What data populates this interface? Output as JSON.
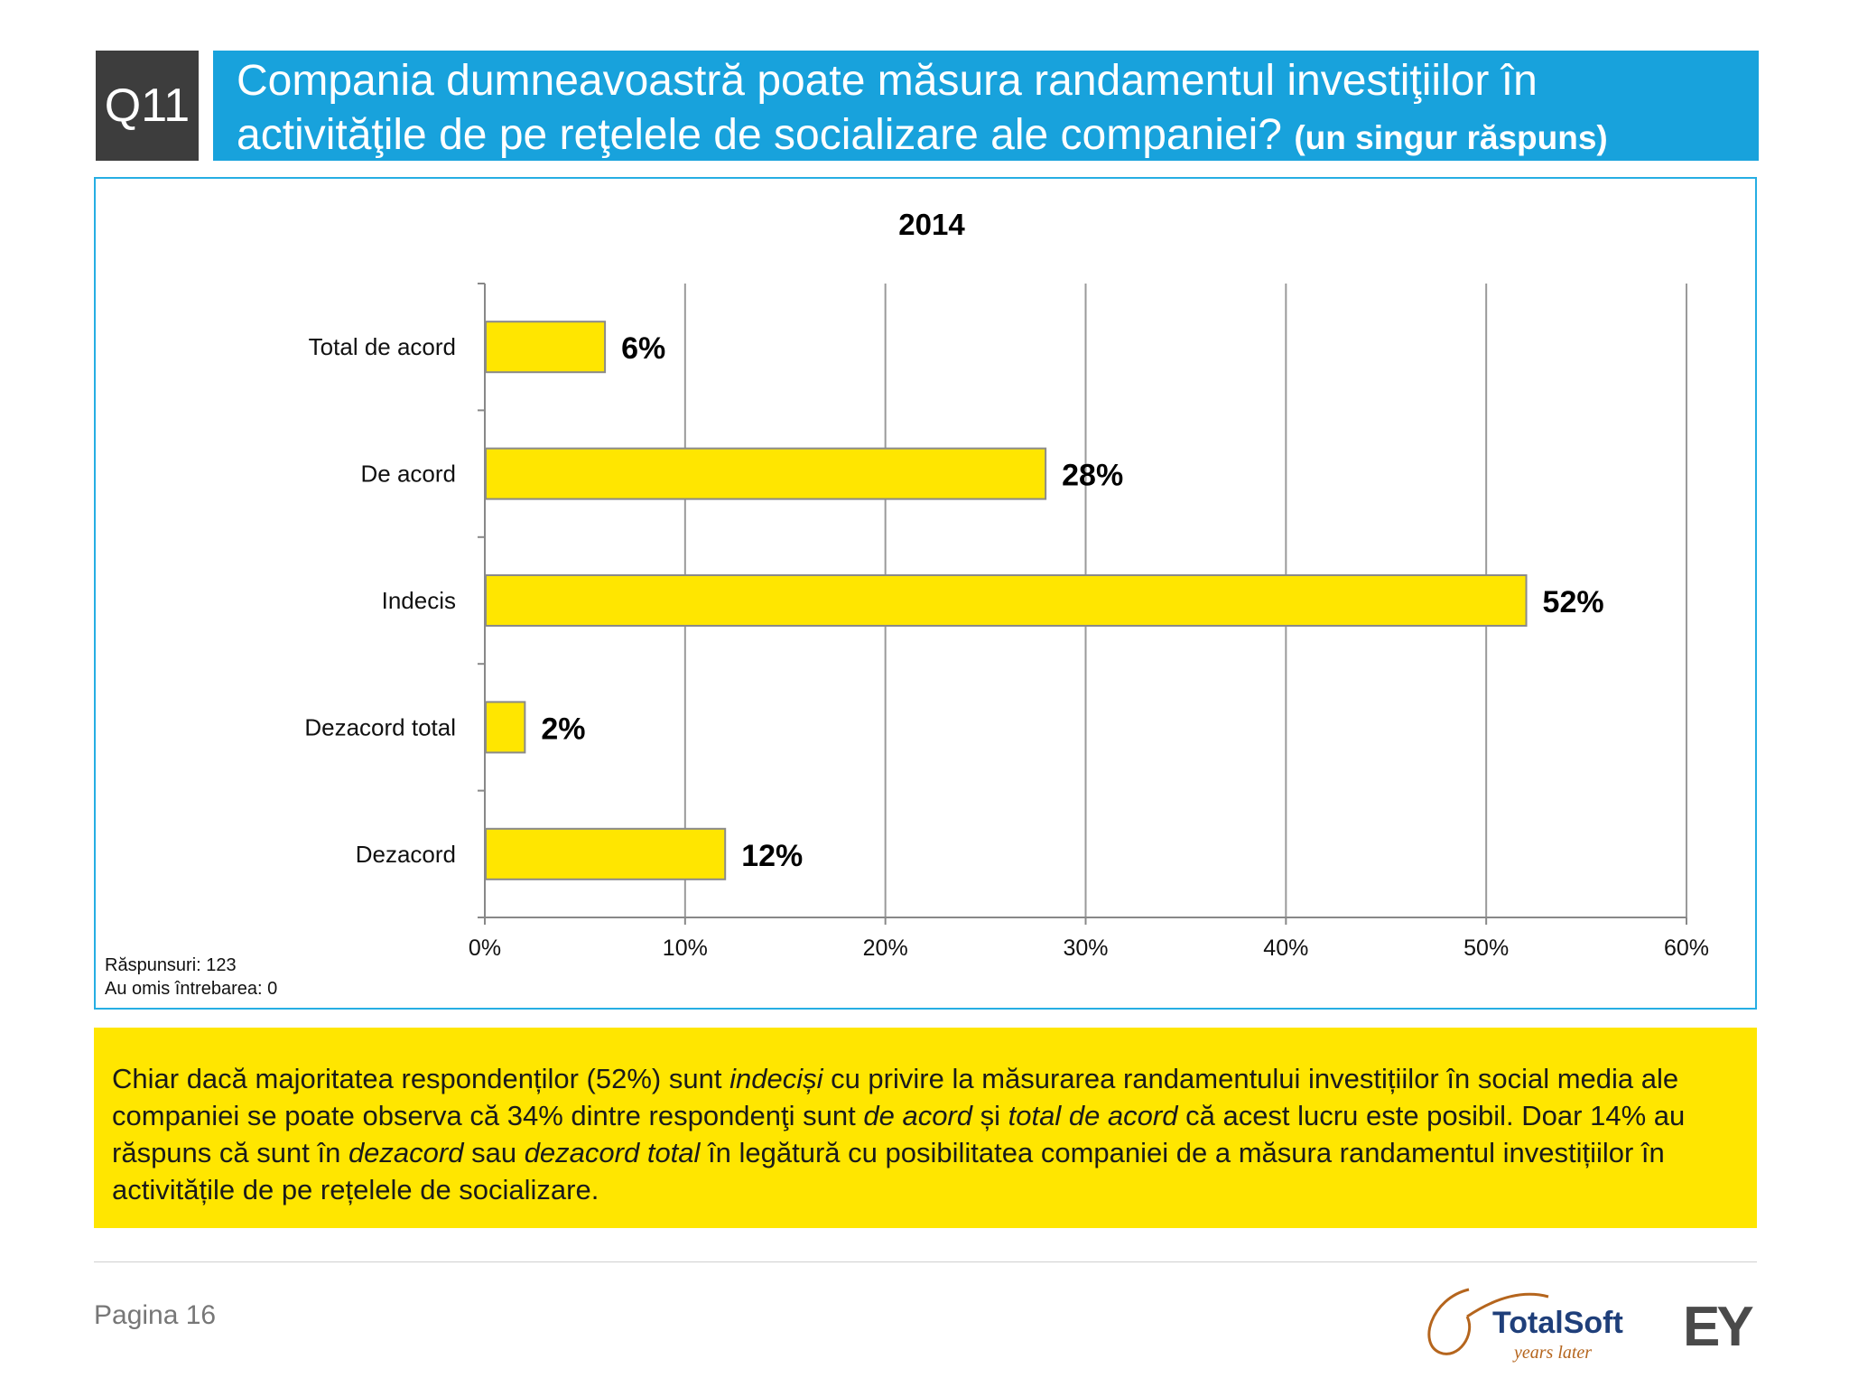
{
  "header": {
    "badge": "Q11",
    "title_line1": "Compania dumneavoastră poate măsura randamentul investiţiilor în",
    "title_line2": "activităţile de pe reţelele de socializare ale companiei?",
    "title_note": "(un singur răspuns)"
  },
  "chart_data": {
    "type": "bar",
    "orientation": "horizontal",
    "title": "2014",
    "categories": [
      "Total de acord",
      "De acord",
      "Indecis",
      "Dezacord total",
      "Dezacord"
    ],
    "values": [
      6,
      28,
      52,
      2,
      12
    ],
    "value_labels": [
      "6%",
      "28%",
      "52%",
      "2%",
      "12%"
    ],
    "xlim": [
      0,
      60
    ],
    "x_ticks": [
      "0%",
      "10%",
      "20%",
      "30%",
      "40%",
      "50%",
      "60%"
    ],
    "grid": true,
    "bar_color": "#ffe600"
  },
  "footnotes": {
    "responses": "Răspunsuri: 123",
    "skipped": "Au omis întrebarea: 0"
  },
  "summary": {
    "p1": "Chiar dacă majoritatea respondenților (52%) sunt ",
    "i1": "indeciși",
    "p2": " cu privire la măsurarea randamentului investițiilor în social media ale companiei se poate observa că 34% dintre respondenţi sunt ",
    "i2": "de acord",
    "p3": " și ",
    "i3": "total de acord",
    "p4": " că acest lucru este posibil. Doar 14% au răspuns că sunt în ",
    "i4": "dezacord",
    "p5": " sau ",
    "i5": "dezacord total",
    "p6": " în legătură cu posibilitatea companiei de a măsura randamentul investițiilor în activitățile de pe rețelele de socializare."
  },
  "footer": {
    "page": "Pagina 16",
    "totalsoft_logo": "TotalSoft",
    "totalsoft_tagline": "years later",
    "ey_logo": "EY"
  }
}
